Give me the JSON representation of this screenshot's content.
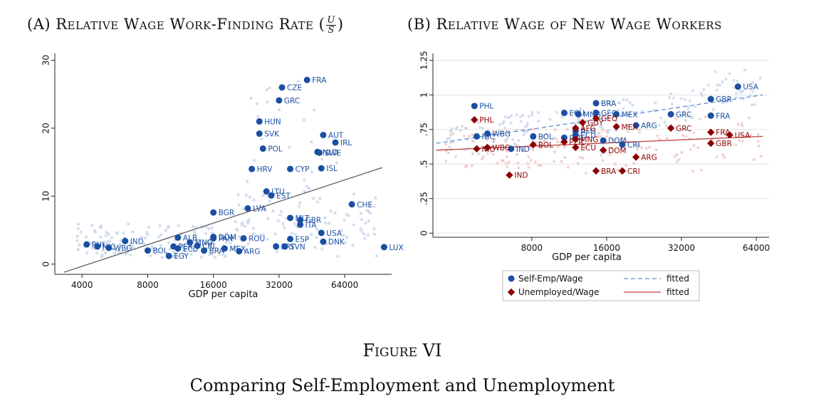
{
  "figure": {
    "label": "Figure VI",
    "caption": "Comparing Self-Employment and Unemployment"
  },
  "panel_a": {
    "title_prefix": "(A) Relative Wage Work-Finding Rate (",
    "title_suffix": ")",
    "frac_num": "U",
    "frac_den": "S"
  },
  "panel_b": {
    "title": "(B) Relative Wage of New Wage Workers"
  },
  "colors": {
    "blue": "#1a4fa3",
    "red": "#8b0000",
    "fit_blue": "#5b8fd4",
    "fit_red": "#c0403a",
    "fit_a": "#555555",
    "faint_blue": "#c9d6ea",
    "faint_red": "#efc6c6"
  },
  "chart_data": [
    {
      "type": "scatter",
      "xlabel": "GDP per capita",
      "ylabel": "",
      "x_scale": "log",
      "xlim": [
        3000,
        105000
      ],
      "ylim": [
        -1.5,
        31
      ],
      "xticks": [
        4000,
        8000,
        16000,
        32000,
        64000
      ],
      "xtick_labels": [
        "4000",
        "8000",
        "16000",
        "32000",
        "64000"
      ],
      "yticks": [
        0,
        10,
        20,
        30
      ],
      "ytick_labels": [
        "0",
        "10",
        "20",
        "30"
      ],
      "fit_line": {
        "x": [
          3300,
          95000
        ],
        "y": [
          -1.2,
          14.2
        ]
      },
      "points": [
        {
          "label": "FRA",
          "x": 43000,
          "y": 27.1
        },
        {
          "label": "CZE",
          "x": 33000,
          "y": 26.0
        },
        {
          "label": "GRC",
          "x": 32000,
          "y": 24.1
        },
        {
          "label": "HUN",
          "x": 26000,
          "y": 21.0
        },
        {
          "label": "SVK",
          "x": 26000,
          "y": 19.2
        },
        {
          "label": "AUT",
          "x": 51000,
          "y": 19.0
        },
        {
          "label": "IRL",
          "x": 58000,
          "y": 17.9
        },
        {
          "label": "POL",
          "x": 27000,
          "y": 17.0
        },
        {
          "label": "NLD",
          "x": 48000,
          "y": 16.5
        },
        {
          "label": "SWE",
          "x": 49000,
          "y": 16.4
        },
        {
          "label": "HRV",
          "x": 24000,
          "y": 14.0
        },
        {
          "label": "CYP",
          "x": 36000,
          "y": 14.0
        },
        {
          "label": "ISL",
          "x": 50000,
          "y": 14.1
        },
        {
          "label": "LTU",
          "x": 28000,
          "y": 10.7
        },
        {
          "label": "EST",
          "x": 29500,
          "y": 10.1
        },
        {
          "label": "CHE",
          "x": 69000,
          "y": 8.8
        },
        {
          "label": "LVA",
          "x": 23000,
          "y": 8.2
        },
        {
          "label": "BGR",
          "x": 16000,
          "y": 7.6
        },
        {
          "label": "MLT",
          "x": 36000,
          "y": 6.8
        },
        {
          "label": "GBR",
          "x": 40000,
          "y": 6.5
        },
        {
          "label": "ITA",
          "x": 40000,
          "y": 5.8
        },
        {
          "label": "USA",
          "x": 50000,
          "y": 4.6
        },
        {
          "label": "DNK",
          "x": 51000,
          "y": 3.3
        },
        {
          "label": "ESP",
          "x": 36000,
          "y": 3.7
        },
        {
          "label": "ROU",
          "x": 22000,
          "y": 3.8
        },
        {
          "label": "DOM",
          "x": 16000,
          "y": 4.0
        },
        {
          "label": "PAN",
          "x": 16000,
          "y": 3.8
        },
        {
          "label": "ALB",
          "x": 11000,
          "y": 3.9
        },
        {
          "label": "MNG",
          "x": 12500,
          "y": 3.2
        },
        {
          "label": "CRI",
          "x": 13500,
          "y": 2.7
        },
        {
          "label": "PER",
          "x": 10500,
          "y": 2.6
        },
        {
          "label": "ECU",
          "x": 11000,
          "y": 2.3
        },
        {
          "label": "BRA",
          "x": 14500,
          "y": 2.0
        },
        {
          "label": "MEX",
          "x": 18000,
          "y": 2.3
        },
        {
          "label": "ARG",
          "x": 21000,
          "y": 1.9
        },
        {
          "label": "PRT",
          "x": 31000,
          "y": 2.6
        },
        {
          "label": "SVN",
          "x": 34000,
          "y": 2.6
        },
        {
          "label": "IND",
          "x": 6300,
          "y": 3.4
        },
        {
          "label": "PHL",
          "x": 4200,
          "y": 2.9
        },
        {
          "label": "NIC",
          "x": 4700,
          "y": 2.6
        },
        {
          "label": "WBG",
          "x": 5300,
          "y": 2.4
        },
        {
          "label": "BOL",
          "x": 8000,
          "y": 2.0
        },
        {
          "label": "EGY",
          "x": 10000,
          "y": 1.2
        },
        {
          "label": "LUX",
          "x": 97000,
          "y": 2.5
        }
      ]
    },
    {
      "type": "scatter",
      "xlabel": "GDP per capita",
      "ylabel": "",
      "x_scale": "log",
      "xlim": [
        3200,
        72000
      ],
      "ylim": [
        -0.03,
        1.3
      ],
      "xticks": [
        8000,
        16000,
        32000,
        64000
      ],
      "xtick_labels": [
        "8000",
        "16000",
        "32000",
        "64000"
      ],
      "yticks": [
        0,
        0.25,
        0.5,
        0.75,
        1,
        1.25
      ],
      "ytick_labels": [
        "0",
        ".25",
        ".5",
        ".75",
        "1",
        "1.25"
      ],
      "legend": {
        "placement": "bottom",
        "entries": [
          "Self-Emp/Wage",
          "Unemployed/Wage",
          "fitted",
          "fitted"
        ]
      },
      "fit_lines": [
        {
          "series": "Self-Emp/Wage",
          "style": "dashed",
          "x": [
            3300,
            68000
          ],
          "y": [
            0.65,
            1.0
          ]
        },
        {
          "series": "Unemployed/Wage",
          "style": "solid",
          "x": [
            3300,
            68000
          ],
          "y": [
            0.6,
            0.7
          ]
        }
      ],
      "series": [
        {
          "name": "Self-Emp/Wage",
          "marker": "circle",
          "points": [
            {
              "label": "USA",
              "x": 54000,
              "y": 1.06
            },
            {
              "label": "GBR",
              "x": 42000,
              "y": 0.97
            },
            {
              "label": "FRA",
              "x": 42000,
              "y": 0.85
            },
            {
              "label": "GRC",
              "x": 29000,
              "y": 0.86
            },
            {
              "label": "BRA",
              "x": 14500,
              "y": 0.94
            },
            {
              "label": "ECU",
              "x": 10800,
              "y": 0.87
            },
            {
              "label": "MNG",
              "x": 12300,
              "y": 0.86
            },
            {
              "label": "GEO",
              "x": 14500,
              "y": 0.87
            },
            {
              "label": "MEX",
              "x": 17500,
              "y": 0.86
            },
            {
              "label": "ARG",
              "x": 21000,
              "y": 0.78
            },
            {
              "label": "PHL",
              "x": 4700,
              "y": 0.92
            },
            {
              "label": "NIC",
              "x": 4800,
              "y": 0.7
            },
            {
              "label": "WBG",
              "x": 5300,
              "y": 0.72
            },
            {
              "label": "IND",
              "x": 6600,
              "y": 0.61
            },
            {
              "label": "BOL",
              "x": 8100,
              "y": 0.7
            },
            {
              "label": "PER",
              "x": 10800,
              "y": 0.69
            },
            {
              "label": "DOM",
              "x": 15500,
              "y": 0.67
            },
            {
              "label": "CRI",
              "x": 18500,
              "y": 0.64
            },
            {
              "label": "AFG",
              "x": 12000,
              "y": 0.74
            },
            {
              "label": "ECU",
              "x": 12000,
              "y": 0.71
            }
          ]
        },
        {
          "name": "Unemployed/Wage",
          "marker": "diamond",
          "points": [
            {
              "label": "USA",
              "x": 50000,
              "y": 0.71
            },
            {
              "label": "FRA",
              "x": 42000,
              "y": 0.73
            },
            {
              "label": "GBR",
              "x": 42000,
              "y": 0.65
            },
            {
              "label": "GRC",
              "x": 29000,
              "y": 0.76
            },
            {
              "label": "MEX",
              "x": 17500,
              "y": 0.77
            },
            {
              "label": "GEO",
              "x": 14500,
              "y": 0.83
            },
            {
              "label": "GUY",
              "x": 12800,
              "y": 0.8
            },
            {
              "label": "AFG",
              "x": 12000,
              "y": 0.76
            },
            {
              "label": "MNG",
              "x": 12000,
              "y": 0.68
            },
            {
              "label": "ECU",
              "x": 12000,
              "y": 0.62
            },
            {
              "label": "BOL",
              "x": 8100,
              "y": 0.64
            },
            {
              "label": "PER",
              "x": 10800,
              "y": 0.66
            },
            {
              "label": "PHL",
              "x": 4700,
              "y": 0.82
            },
            {
              "label": "NIC",
              "x": 4800,
              "y": 0.61
            },
            {
              "label": "WBG",
              "x": 5300,
              "y": 0.62
            },
            {
              "label": "IND",
              "x": 6500,
              "y": 0.42
            },
            {
              "label": "DOM",
              "x": 15500,
              "y": 0.6
            },
            {
              "label": "BRA",
              "x": 14500,
              "y": 0.45
            },
            {
              "label": "CRI",
              "x": 18500,
              "y": 0.45
            },
            {
              "label": "ARG",
              "x": 21000,
              "y": 0.55
            }
          ]
        }
      ]
    }
  ]
}
